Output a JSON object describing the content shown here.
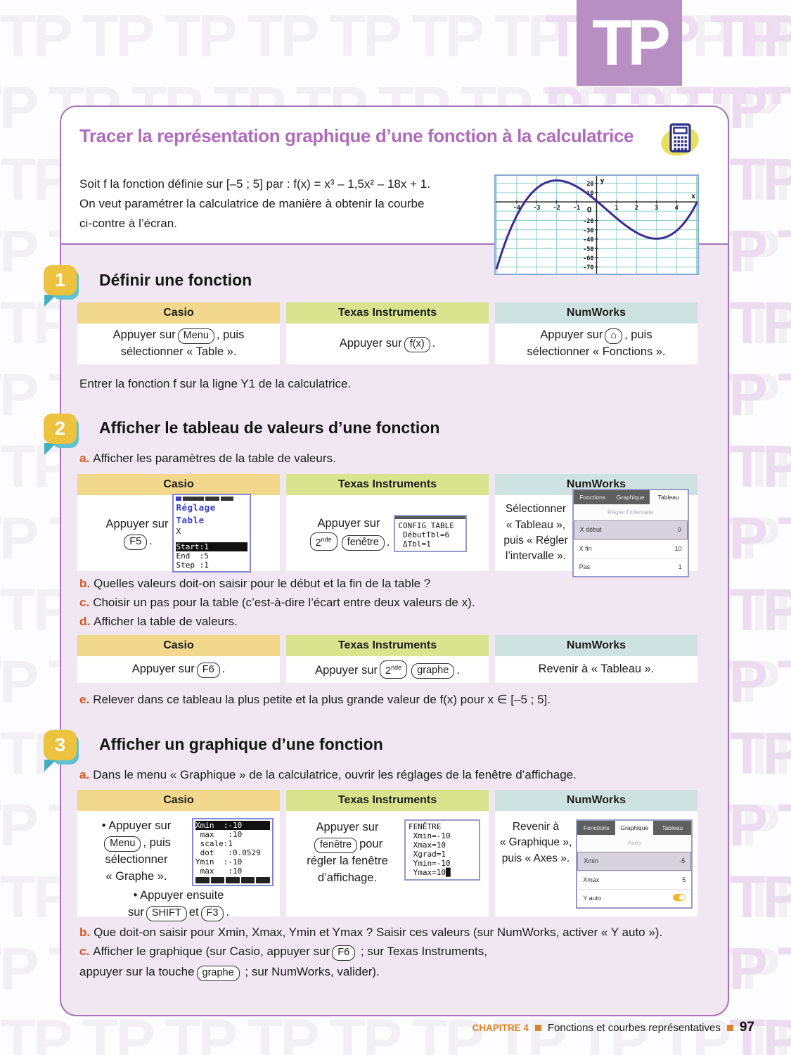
{
  "pattern": {
    "text": "TP"
  },
  "logo": {
    "text": "TP"
  },
  "header": {
    "title": "Tracer la représentation graphique d’une fonction à la calculatrice"
  },
  "intro": {
    "p1": "Soit f la fonction définie sur [–5 ; 5] par : f(x) = x³ – 1,5x² – 18x + 1.",
    "p2": "On veut paramétrer la calculatrice de manière à obtenir la courbe",
    "p3": "ci-contre à l’écran."
  },
  "graph": {
    "xlabel": "x",
    "ylabel": "y",
    "origin": "O",
    "xmin": -5.05,
    "xmax": 5.05,
    "ymin": -77,
    "ymax": 28,
    "xticks": [
      -4,
      -3,
      -2,
      -1,
      1,
      2,
      3,
      4
    ],
    "yticks": [
      20,
      10,
      -20,
      -30,
      -40,
      -50,
      -60,
      -70
    ],
    "coeffs": [
      1,
      -1.5,
      -18,
      1
    ],
    "curve": "#3b2d91",
    "grid": "#8ecfca",
    "axis": "#222222"
  },
  "s1": {
    "num": "1",
    "title": "Définir une fonction",
    "headers": [
      "Casio",
      "Texas Instruments",
      "NumWorks"
    ],
    "casio": {
      "pre": "Appuyer sur",
      "key": "Menu",
      "post": ", puis",
      "line2": "sélectionner « Table »."
    },
    "ti": {
      "pre": "Appuyer sur",
      "key": "f(x)",
      "post": "."
    },
    "nw": {
      "pre": "Appuyer sur",
      "key": "⌂",
      "post": ", puis",
      "line2": "sélectionner « Fonctions »."
    },
    "after": "Entrer la fonction f sur la ligne Y1 de la calculatrice."
  },
  "s2": {
    "num": "2",
    "title": "Afficher le tableau de valeurs d’une fonction",
    "a": {
      "l": "a.",
      "t": "Afficher les paramètres de la table de valeurs."
    },
    "headers": [
      "Casio",
      "Texas Instruments",
      "NumWorks"
    ],
    "t1": {
      "casio": {
        "pre": "Appuyer sur",
        "key": "F5",
        "post": "."
      },
      "ti": {
        "pre": "Appuyer sur",
        "k1b": "2",
        "k1s": "nde",
        "k2": "fenêtre",
        "post": "."
      },
      "nw": {
        "l1": "Sélectionner",
        "l2": "« Tableau »,",
        "l3": "puis « Régler",
        "l4": "l’intervalle »."
      }
    },
    "scr_casio": {
      "title": "Réglage Table",
      "var": "X",
      "r1": "Start:1",
      "r2": "End  :5",
      "r3": "Step :1"
    },
    "scr_ti": {
      "l1": "CONFIG TABLE",
      "l2": " DébutTbl=6",
      "l3": " ΔTbl=1"
    },
    "scr_nw": {
      "tab1": "Fonctions",
      "tab2": "Graphique",
      "tab3": "Tableau",
      "sub": "Régler l’intervalle",
      "r1k": "X début",
      "r1v": "0",
      "r2k": "X fin",
      "r2v": "10",
      "r3k": "Pas",
      "r3v": "1"
    },
    "b": {
      "l": "b.",
      "t": "Quelles valeurs doit-on saisir pour le début et la fin de la table ?"
    },
    "c": {
      "l": "c.",
      "t": "Choisir un pas pour la table (c’est-à-dire l’écart entre deux valeurs de x)."
    },
    "d": {
      "l": "d.",
      "t": "Afficher la table de valeurs."
    },
    "t2": {
      "casio": {
        "pre": "Appuyer sur",
        "key": "F6",
        "post": "."
      },
      "ti": {
        "pre": "Appuyer sur",
        "k1b": "2",
        "k1s": "nde",
        "k2": "graphe",
        "post": "."
      },
      "nw": "Revenir à « Tableau »."
    },
    "e": {
      "l": "e.",
      "t": "Relever dans ce tableau la plus petite et la plus grande valeur de f(x) pour x ∈ [–5 ; 5]."
    }
  },
  "s3": {
    "num": "3",
    "title": "Afficher un graphique d’une fonction",
    "a": {
      "l": "a.",
      "t": "Dans le menu « Graphique » de la calculatrice, ouvrir les réglages de la fenêtre d’affichage."
    },
    "headers": [
      "Casio",
      "Texas Instruments",
      "NumWorks"
    ],
    "casio": {
      "b1a": "• Appuyer sur",
      "b1key": "Menu",
      "b1b": ", puis",
      "b1c": "sélectionner",
      "b1d": "« Graphe ».",
      "b2a": "• Appuyer ensuite",
      "b2pre": "sur",
      "b2k1": "SHIFT",
      "b2mid": "et",
      "b2k2": "F3",
      "b2post": "."
    },
    "ti": {
      "pre": "Appuyer sur",
      "key": "fenêtre",
      "post": "pour",
      "l2": "régler la fenêtre",
      "l3": "d’affichage."
    },
    "nw": {
      "l1": "Revenir à",
      "l2": "« Graphique »,",
      "l3": "puis « Axes »."
    },
    "scr_casio": {
      "r1": "Xmin  :-10",
      "r2": " max   :10",
      "r3": " scale:1",
      "r4": " dot   :0.0529",
      "r5": "Ymin  :-10",
      "r6": " max   :10"
    },
    "scr_ti": {
      "l1": "FENÊTRE",
      "l2": " Xmin=-10",
      "l3": " Xmax=10",
      "l4": " Xgrad=1",
      "l5": " Ymin=-10",
      "l6": " Ymax=10█"
    },
    "scr_nw": {
      "tab1": "Fonctions",
      "tab2": "Graphique",
      "tab3": "Tableau",
      "sub": "Axes",
      "r1k": "Xmin",
      "r1v": "-5",
      "r2k": "Xmax",
      "r2v": "5",
      "r3k": "Y auto"
    },
    "b": {
      "l": "b.",
      "t": "Que doit-on saisir pour Xmin, Xmax, Ymin et Ymax ? Saisir ces valeurs (sur NumWorks, activer « Y auto »)."
    },
    "c": {
      "l": "c.",
      "pre": "Afficher le graphique (sur Casio, appuyer sur",
      "key": "F6",
      "mid": " ; sur Texas Instruments,",
      "l2pre": "appuyer sur la touche",
      "key2": "graphe",
      "post": " ; sur NumWorks, valider)."
    }
  },
  "footer": {
    "chapter": "CHAPITRE 4",
    "title": "Fonctions et courbes représentatives",
    "page": "97"
  }
}
